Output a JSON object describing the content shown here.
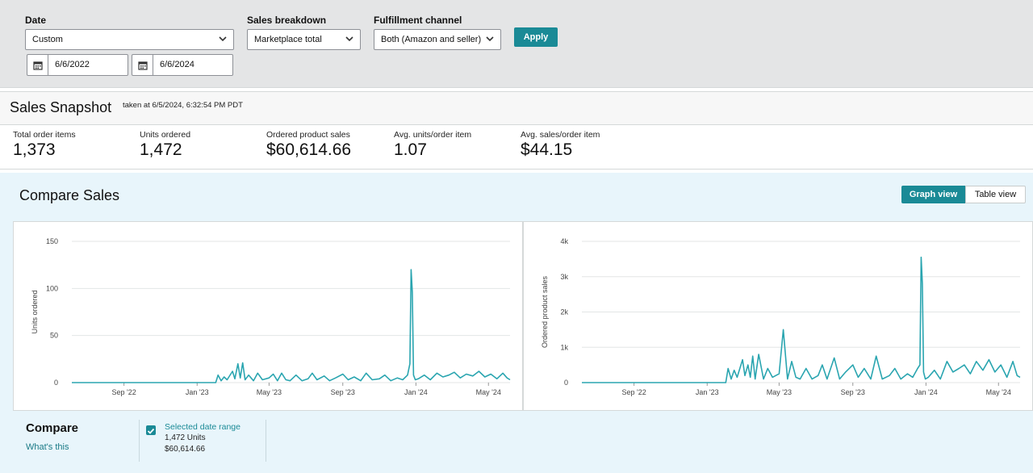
{
  "filters": {
    "date_label": "Date",
    "date_value": "Custom",
    "start_date": "6/6/2022",
    "end_date": "6/6/2024",
    "breakdown_label": "Sales breakdown",
    "breakdown_value": "Marketplace total",
    "channel_label": "Fulfillment channel",
    "channel_value": "Both (Amazon and seller)",
    "apply_label": "Apply"
  },
  "snapshot": {
    "title": "Sales Snapshot",
    "subtitle": "taken at 6/5/2024, 6:32:54 PM PDT",
    "metrics": [
      {
        "label": "Total order items",
        "value": "1,373"
      },
      {
        "label": "Units ordered",
        "value": "1,472"
      },
      {
        "label": "Ordered product sales",
        "value": "$60,614.66"
      },
      {
        "label": "Avg. units/order item",
        "value": "1.07"
      },
      {
        "label": "Avg. sales/order item",
        "value": "$44.15"
      }
    ]
  },
  "compare": {
    "title": "Compare Sales",
    "graph_view_label": "Graph view",
    "table_view_label": "Table view",
    "legend_title": "Compare",
    "whats_this": "What's this",
    "selected_label": "Selected date range",
    "selected_units": "1,472 Units",
    "selected_sales": "$60,614.66"
  },
  "colors": {
    "accent": "#1a8a96",
    "line": "#2aa5b0",
    "panel_bg": "#e8f5fb",
    "filter_bg": "#e4e5e6"
  },
  "chart_data": [
    {
      "type": "line",
      "title": "",
      "xlabel": "",
      "ylabel": "Units ordered",
      "ylim": [
        0,
        150
      ],
      "yticks": [
        0,
        50,
        100,
        150
      ],
      "ytick_labels": [
        "0",
        "50",
        "100",
        "150"
      ],
      "xlim": [
        "2022-06-06",
        "2024-06-06"
      ],
      "xtick_labels": [
        "Sep '22",
        "Jan '23",
        "May '23",
        "Sep '23",
        "Jan '24",
        "May '24"
      ],
      "xtick_dates": [
        "2022-09-01",
        "2023-01-01",
        "2023-05-01",
        "2023-09-01",
        "2024-01-01",
        "2024-05-01"
      ],
      "series": [
        {
          "x": [
            "2022-06-06",
            "2022-09-01",
            "2023-01-01",
            "2023-02-01",
            "2023-02-05",
            "2023-02-10",
            "2023-02-15",
            "2023-02-20",
            "2023-03-01",
            "2023-03-05",
            "2023-03-10",
            "2023-03-14",
            "2023-03-18",
            "2023-03-22",
            "2023-03-28",
            "2023-04-05",
            "2023-04-12",
            "2023-04-20",
            "2023-05-01",
            "2023-05-08",
            "2023-05-15",
            "2023-05-22",
            "2023-05-29",
            "2023-06-05",
            "2023-06-15",
            "2023-06-25",
            "2023-07-05",
            "2023-07-12",
            "2023-07-20",
            "2023-08-01",
            "2023-08-10",
            "2023-08-20",
            "2023-09-01",
            "2023-09-10",
            "2023-09-20",
            "2023-10-01",
            "2023-10-10",
            "2023-10-20",
            "2023-11-01",
            "2023-11-10",
            "2023-11-20",
            "2023-12-01",
            "2023-12-10",
            "2023-12-18",
            "2023-12-22",
            "2023-12-24",
            "2023-12-26",
            "2023-12-28",
            "2023-12-31",
            "2024-01-05",
            "2024-01-15",
            "2024-01-25",
            "2024-02-05",
            "2024-02-15",
            "2024-02-25",
            "2024-03-05",
            "2024-03-15",
            "2024-03-25",
            "2024-04-05",
            "2024-04-15",
            "2024-04-25",
            "2024-05-05",
            "2024-05-15",
            "2024-05-25",
            "2024-06-01",
            "2024-06-06"
          ],
          "y": [
            0,
            0,
            0,
            0,
            8,
            2,
            6,
            3,
            12,
            4,
            20,
            5,
            21,
            3,
            8,
            2,
            10,
            3,
            5,
            9,
            2,
            10,
            3,
            2,
            8,
            2,
            4,
            10,
            3,
            7,
            2,
            5,
            9,
            3,
            6,
            2,
            10,
            3,
            4,
            8,
            2,
            5,
            3,
            8,
            20,
            120,
            96,
            8,
            3,
            4,
            8,
            3,
            10,
            6,
            8,
            11,
            5,
            9,
            7,
            12,
            6,
            9,
            4,
            10,
            5,
            3
          ]
        }
      ]
    },
    {
      "type": "line",
      "title": "",
      "xlabel": "",
      "ylabel": "Ordered product sales",
      "ylim": [
        0,
        4000
      ],
      "yticks": [
        0,
        1000,
        2000,
        3000,
        4000
      ],
      "ytick_labels": [
        "0",
        "1k",
        "2k",
        "3k",
        "4k"
      ],
      "xlim": [
        "2022-06-06",
        "2024-06-06"
      ],
      "xtick_labels": [
        "Sep '22",
        "Jan '23",
        "May '23",
        "Sep '23",
        "Jan '24",
        "May '24"
      ],
      "xtick_dates": [
        "2022-09-01",
        "2023-01-01",
        "2023-05-01",
        "2023-09-01",
        "2024-01-01",
        "2024-05-01"
      ],
      "series": [
        {
          "x": [
            "2022-06-06",
            "2022-09-01",
            "2023-01-01",
            "2023-02-01",
            "2023-02-05",
            "2023-02-10",
            "2023-02-15",
            "2023-02-20",
            "2023-03-01",
            "2023-03-05",
            "2023-03-10",
            "2023-03-14",
            "2023-03-18",
            "2023-03-22",
            "2023-03-28",
            "2023-04-05",
            "2023-04-12",
            "2023-04-20",
            "2023-05-01",
            "2023-05-08",
            "2023-05-15",
            "2023-05-22",
            "2023-05-29",
            "2023-06-05",
            "2023-06-15",
            "2023-06-25",
            "2023-07-05",
            "2023-07-12",
            "2023-07-20",
            "2023-08-01",
            "2023-08-10",
            "2023-08-20",
            "2023-09-01",
            "2023-09-10",
            "2023-09-20",
            "2023-10-01",
            "2023-10-10",
            "2023-10-20",
            "2023-11-01",
            "2023-11-10",
            "2023-11-20",
            "2023-12-01",
            "2023-12-10",
            "2023-12-18",
            "2023-12-22",
            "2023-12-24",
            "2023-12-26",
            "2023-12-28",
            "2023-12-31",
            "2024-01-05",
            "2024-01-15",
            "2024-01-25",
            "2024-02-05",
            "2024-02-15",
            "2024-02-25",
            "2024-03-05",
            "2024-03-15",
            "2024-03-25",
            "2024-04-05",
            "2024-04-15",
            "2024-04-25",
            "2024-05-05",
            "2024-05-15",
            "2024-05-25",
            "2024-06-01",
            "2024-06-06"
          ],
          "y": [
            0,
            0,
            0,
            0,
            400,
            100,
            350,
            150,
            650,
            200,
            500,
            150,
            750,
            100,
            800,
            100,
            400,
            150,
            250,
            1500,
            100,
            600,
            150,
            100,
            400,
            100,
            200,
            500,
            100,
            700,
            100,
            300,
            500,
            150,
            400,
            100,
            750,
            100,
            200,
            400,
            100,
            250,
            150,
            400,
            500,
            3550,
            2800,
            300,
            100,
            150,
            350,
            100,
            600,
            300,
            400,
            500,
            250,
            600,
            350,
            650,
            300,
            500,
            150,
            600,
            200,
            150
          ]
        }
      ]
    }
  ]
}
